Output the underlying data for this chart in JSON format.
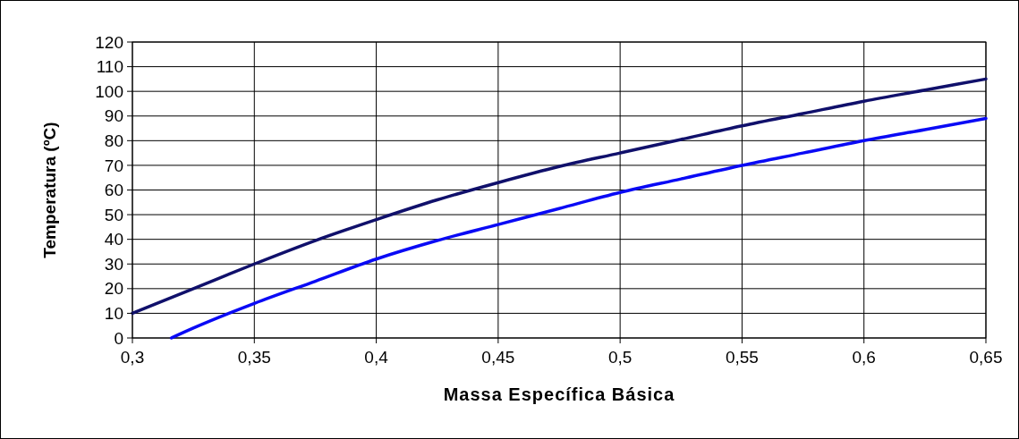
{
  "chart_data": {
    "type": "line",
    "xlabel": "Massa Específica Básica",
    "ylabel": "Temperatura (ºC)",
    "xlim": [
      0.3,
      0.65
    ],
    "xticks": [
      {
        "value": 0.3,
        "label": "0,3"
      },
      {
        "value": 0.35,
        "label": "0,35"
      },
      {
        "value": 0.4,
        "label": "0,4"
      },
      {
        "value": 0.45,
        "label": "0,45"
      },
      {
        "value": 0.5,
        "label": "0,5"
      },
      {
        "value": 0.55,
        "label": "0,55"
      },
      {
        "value": 0.6,
        "label": "0,6"
      },
      {
        "value": 0.65,
        "label": "0,65"
      }
    ],
    "ylim": [
      0,
      120
    ],
    "yticks": [
      0,
      10,
      20,
      30,
      40,
      50,
      60,
      70,
      80,
      90,
      100,
      110,
      120
    ],
    "grid": true,
    "marker": "none",
    "line_style": "solid",
    "series": [
      {
        "color": "#10106b",
        "x": [
          0.3,
          0.325,
          0.35,
          0.375,
          0.4,
          0.425,
          0.45,
          0.475,
          0.5,
          0.525,
          0.55,
          0.575,
          0.6,
          0.625,
          0.65
        ],
        "values": [
          10,
          20,
          30,
          39.5,
          48,
          56,
          63,
          69.5,
          75,
          80.5,
          86,
          91,
          96,
          100.5,
          105
        ]
      },
      {
        "color": "#0a0af5",
        "x": [
          0.316,
          0.325,
          0.35,
          0.375,
          0.4,
          0.425,
          0.45,
          0.475,
          0.5,
          0.525,
          0.55,
          0.575,
          0.6,
          0.625,
          0.65
        ],
        "values": [
          0,
          4,
          14,
          23,
          32,
          39.5,
          46,
          52.5,
          59,
          64.5,
          70,
          75,
          80,
          84.5,
          89
        ]
      }
    ]
  }
}
